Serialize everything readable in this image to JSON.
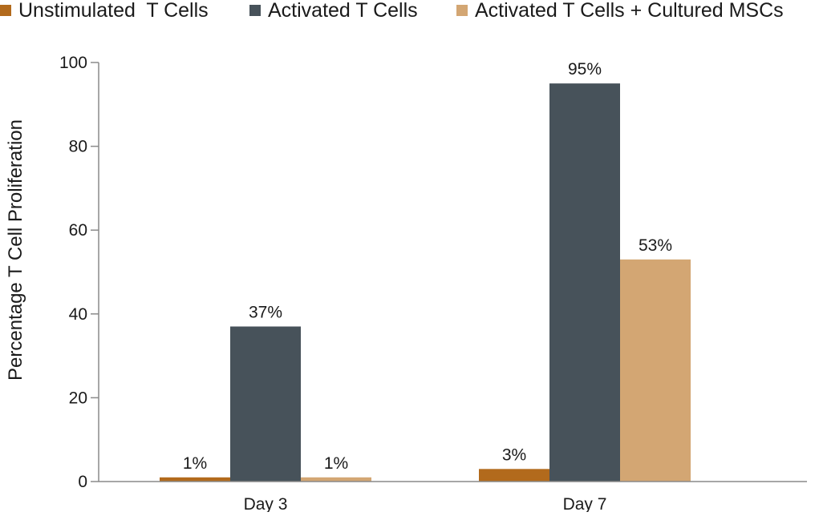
{
  "chart_data": {
    "type": "bar",
    "title": "",
    "xlabel": "",
    "ylabel": "Percentage T Cell Proliferation",
    "ylim": [
      0,
      100
    ],
    "yticks": [
      0,
      20,
      40,
      60,
      80,
      100
    ],
    "grid": false,
    "legend_position": "top",
    "categories": [
      "Day 3",
      "Day 7"
    ],
    "series": [
      {
        "name": "Unstimulated  T Cells",
        "color": "#b26a1c",
        "values": [
          1,
          3
        ],
        "labels": [
          "1%",
          "3%"
        ]
      },
      {
        "name": "Activated T Cells",
        "color": "#47525a",
        "values": [
          37,
          95
        ],
        "labels": [
          "37%",
          "95%"
        ]
      },
      {
        "name": "Activated T Cells + Cultured MSCs",
        "color": "#d3a673",
        "values": [
          1,
          53
        ],
        "labels": [
          "1%",
          "53%"
        ]
      }
    ]
  }
}
